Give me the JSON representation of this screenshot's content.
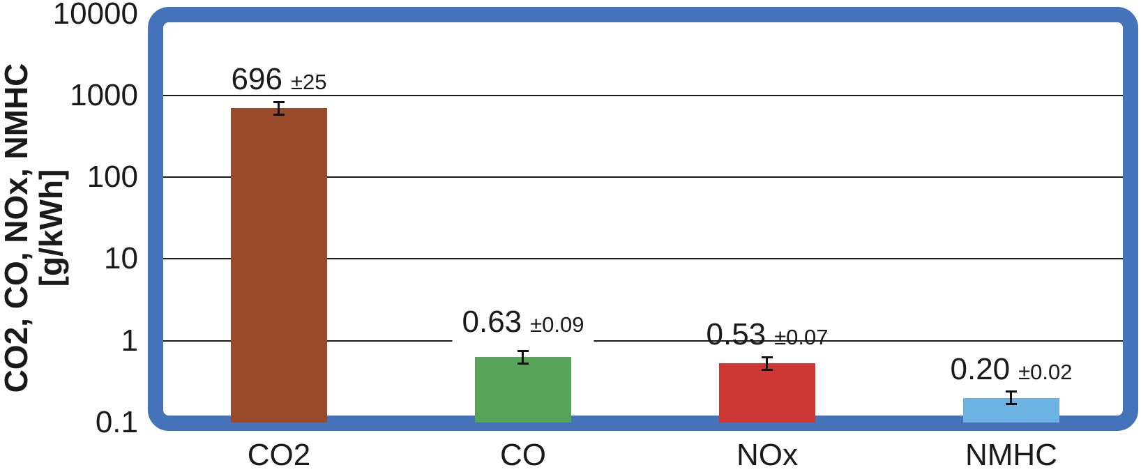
{
  "chart_data": {
    "type": "bar",
    "title": "",
    "xlabel": "",
    "ylabel_line1": "CO2, CO, NOx, NMHC",
    "ylabel_line2": "[g/kWh]",
    "yscale": "log",
    "ylim": [
      0.1,
      10000
    ],
    "yticks": [
      "10000",
      "1000",
      "100",
      "10",
      "1",
      "0.1"
    ],
    "grid": true,
    "legend": "none",
    "frame_color": "#4473B9",
    "gridline_color": "#1a1a1a",
    "categories": [
      "CO2",
      "CO",
      "NOx",
      "NMHC"
    ],
    "values": [
      696,
      0.63,
      0.53,
      0.2
    ],
    "errors": [
      25,
      0.09,
      0.07,
      0.02
    ],
    "value_labels": [
      "696",
      "0.63",
      "0.53",
      "0.20"
    ],
    "error_labels": [
      "±25",
      "±0.09",
      "±0.07",
      "±0.02"
    ],
    "bar_colors": [
      "#984A2B",
      "#57A35A",
      "#CC3733",
      "#6CB3E3"
    ]
  }
}
